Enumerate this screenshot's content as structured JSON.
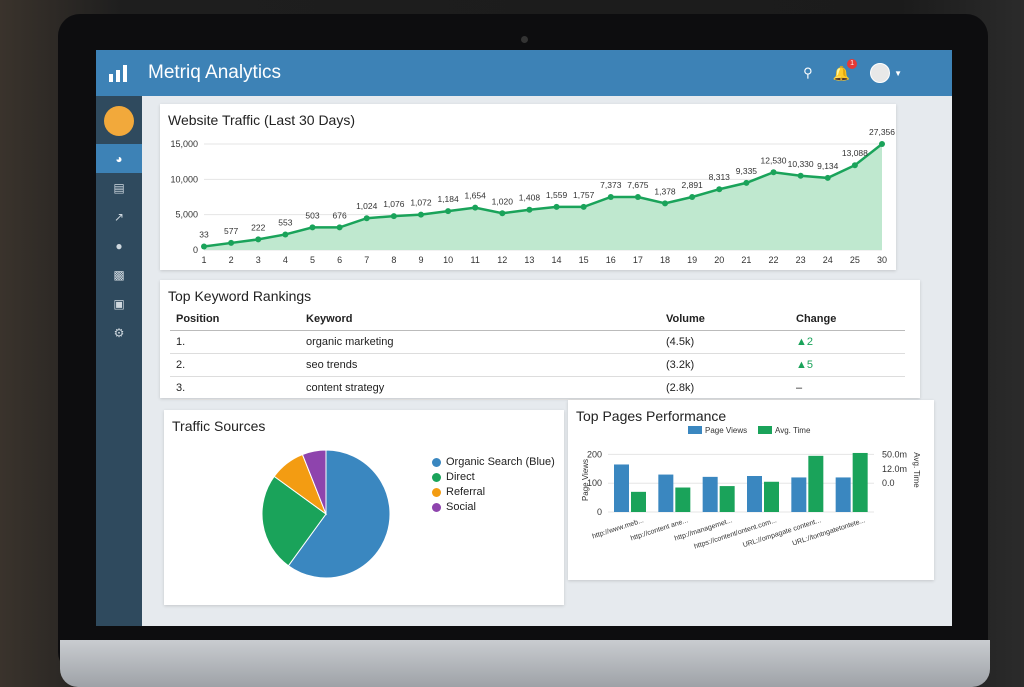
{
  "app": {
    "title": "Metriq Analytics",
    "notification_count": "1"
  },
  "sidebar": {
    "items": [
      "dashboard",
      "cards",
      "trends",
      "users",
      "reports",
      "briefcase",
      "settings"
    ]
  },
  "traffic": {
    "title": "Website Traffic (Last 30 Days)"
  },
  "keywords": {
    "title": "Top Keyword Rankings",
    "headers": [
      "Position",
      "Keyword",
      "Volume",
      "Change"
    ],
    "rows": [
      [
        "1.",
        "organic marketing",
        "(4.5k)",
        "▲2"
      ],
      [
        "2.",
        "seo trends",
        "(3.2k)",
        "▲5"
      ],
      [
        "3.",
        "content strategy",
        "(2.8k)",
        "–"
      ]
    ]
  },
  "sources": {
    "title": "Traffic Sources"
  },
  "pages": {
    "title": "Top Pages Performance"
  },
  "colors": {
    "header": "#3d82b6",
    "green": "#1aa35a",
    "blue": "#3a87c0",
    "orange": "#f39c12",
    "purple": "#8e44ad"
  },
  "chart_data": [
    {
      "type": "line",
      "title": "Website Traffic (Last 30 Days)",
      "ylim": [
        0,
        15000
      ],
      "yticks": [
        "0",
        "5,000",
        "10,000",
        "15,000"
      ],
      "x": [
        "1",
        "2",
        "3",
        "4",
        "5",
        "6",
        "7",
        "8",
        "9",
        "10",
        "11",
        "12",
        "13",
        "14",
        "15",
        "16",
        "17",
        "18",
        "19",
        "20",
        "21",
        "22",
        "23",
        "24",
        "25",
        "30"
      ],
      "values": [
        500,
        1000,
        1500,
        2200,
        3200,
        3200,
        4500,
        4800,
        5000,
        5500,
        6000,
        5200,
        5700,
        6100,
        6100,
        7500,
        7500,
        6600,
        7500,
        8600,
        9500,
        11000,
        10500,
        10200,
        12000,
        15000
      ],
      "data_labels": [
        "33",
        "577",
        "222",
        "553",
        "503",
        "676",
        "1,024",
        "1,076",
        "1,072",
        "1,184",
        "1,654",
        "1,020",
        "1,408",
        "1,559",
        "1,757",
        "7,373",
        "7,675",
        "1,378",
        "2,891",
        "8,313",
        "9,335",
        "12,530",
        "10,330",
        "9,134",
        "13,088",
        "27,356"
      ]
    },
    {
      "type": "pie",
      "title": "Traffic Sources",
      "categories": [
        "Organic Search (Blue)",
        "Direct",
        "Referral",
        "Social"
      ],
      "values": [
        60,
        25,
        9,
        6
      ]
    },
    {
      "type": "bar",
      "title": "Top Pages Performance",
      "ylabel": "Page Views",
      "y2label": "Avg. Time",
      "ylim": [
        0,
        250
      ],
      "yticks": [
        "0",
        "100",
        "200"
      ],
      "y2ticks": [
        "0.0",
        "12.0m",
        "50.0m"
      ],
      "categories": [
        "http://www.meb...",
        "http://content ane...",
        "http://managemet...",
        "https://content/ontent.com...",
        "URL://ompagate content...",
        "URL://tontngatetontete..."
      ],
      "series": [
        {
          "name": "Page Views",
          "values": [
            165,
            130,
            122,
            125,
            120,
            120
          ]
        },
        {
          "name": "Avg. Time",
          "values": [
            70,
            85,
            90,
            105,
            195,
            205
          ]
        }
      ]
    }
  ]
}
